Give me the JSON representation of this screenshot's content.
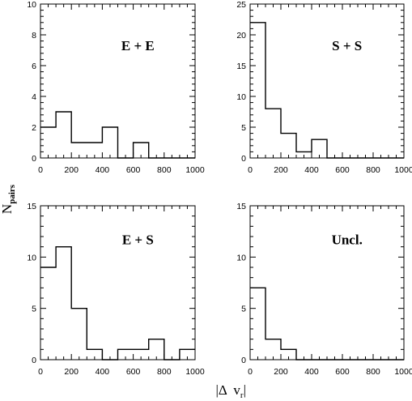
{
  "figure": {
    "ylabel_main": "N",
    "ylabel_sub": "pairs",
    "xlabel_left": "|Δ  v",
    "xlabel_sub": "r",
    "xlabel_right": "|"
  },
  "chart_data": [
    {
      "type": "histogram",
      "annotation": "E + E",
      "bin_edges": [
        0,
        100,
        200,
        300,
        400,
        500,
        600,
        700,
        800,
        900,
        1000
      ],
      "values": [
        2,
        3,
        1,
        1,
        2,
        0,
        1,
        0,
        0,
        0
      ],
      "xlim": [
        0,
        1000
      ],
      "ylim": [
        0,
        10
      ],
      "xticks": [
        0,
        200,
        400,
        600,
        800,
        1000
      ],
      "yticks": [
        0,
        2,
        4,
        6,
        8,
        10
      ],
      "xlabel": "|Δ v_r|",
      "ylabel": "N_pairs"
    },
    {
      "type": "histogram",
      "annotation": "S + S",
      "bin_edges": [
        0,
        100,
        200,
        300,
        400,
        500,
        600,
        700,
        800,
        900,
        1000
      ],
      "values": [
        22,
        8,
        4,
        1,
        3,
        0,
        0,
        0,
        0,
        0
      ],
      "xlim": [
        0,
        1000
      ],
      "ylim": [
        0,
        25
      ],
      "xticks": [
        0,
        200,
        400,
        600,
        800,
        1000
      ],
      "yticks": [
        0,
        5,
        10,
        15,
        20,
        25
      ],
      "xlabel": "|Δ v_r|",
      "ylabel": "N_pairs"
    },
    {
      "type": "histogram",
      "annotation": "E + S",
      "bin_edges": [
        0,
        100,
        200,
        300,
        400,
        500,
        600,
        700,
        800,
        900,
        1000
      ],
      "values": [
        9,
        11,
        5,
        1,
        0,
        1,
        1,
        2,
        0,
        1
      ],
      "xlim": [
        0,
        1000
      ],
      "ylim": [
        0,
        15
      ],
      "xticks": [
        0,
        200,
        400,
        600,
        800,
        1000
      ],
      "yticks": [
        0,
        5,
        10,
        15
      ],
      "xlabel": "|Δ v_r|",
      "ylabel": "N_pairs"
    },
    {
      "type": "histogram",
      "annotation": "Uncl.",
      "bin_edges": [
        0,
        100,
        200,
        300,
        400,
        500,
        600,
        700,
        800,
        900,
        1000
      ],
      "values": [
        7,
        2,
        1,
        0,
        0,
        0,
        0,
        0,
        0,
        0
      ],
      "xlim": [
        0,
        1000
      ],
      "ylim": [
        0,
        15
      ],
      "xticks": [
        0,
        200,
        400,
        600,
        800,
        1000
      ],
      "yticks": [
        0,
        5,
        10,
        15
      ],
      "xlabel": "|Δ v_r|",
      "ylabel": "N_pairs"
    }
  ]
}
